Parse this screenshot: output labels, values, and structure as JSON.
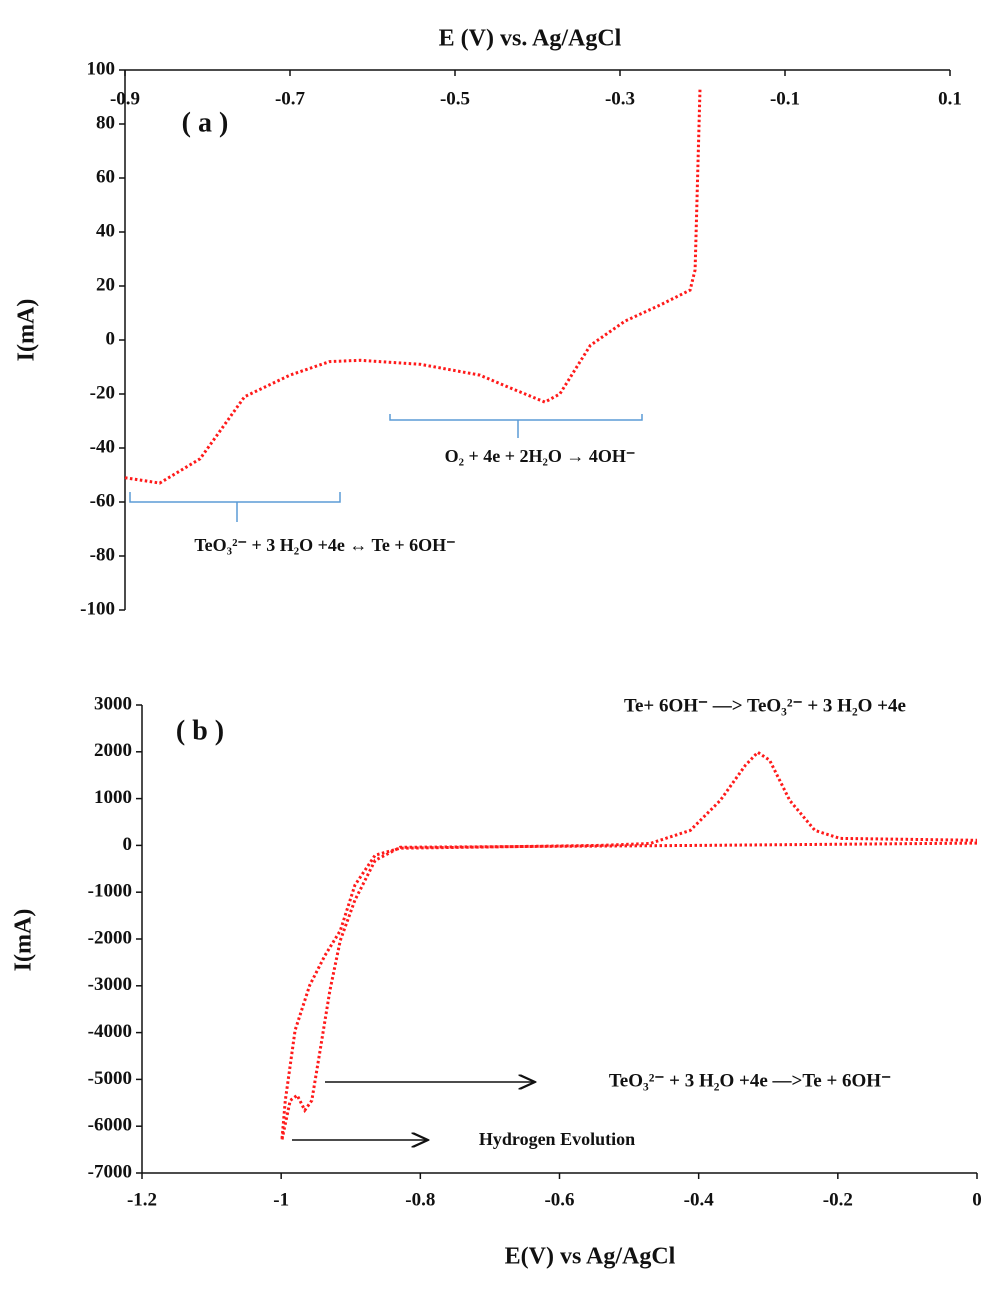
{
  "chart_data": [
    {
      "type": "line",
      "title": "E (V) vs. Ag/AgCl",
      "y_label": "I(mA)",
      "x_axis_position": "top",
      "line_style": "dotted",
      "color": "#ff1a1a",
      "x": [
        -0.9,
        -0.858,
        -0.809,
        -0.755,
        -0.7,
        -0.652,
        -0.615,
        -0.542,
        -0.47,
        -0.439,
        -0.391,
        -0.373,
        -0.336,
        -0.294,
        -0.251,
        -0.215,
        -0.209,
        -0.203
      ],
      "values": [
        -51,
        -53,
        -44,
        -21,
        -13,
        -8,
        -7.5,
        -9,
        -13,
        -17,
        -23,
        -20,
        -2,
        7,
        13,
        18.5,
        26,
        93
      ],
      "xlim": [
        -0.9,
        0.1
      ],
      "xticks": [
        -0.9,
        -0.7,
        -0.5,
        -0.3,
        -0.1,
        0.1
      ],
      "ylim": [
        -100,
        100
      ],
      "yticks": [
        -100,
        -80,
        -60,
        -40,
        -20,
        0,
        20,
        40,
        60,
        80,
        100
      ],
      "annotations": [
        "( a )",
        "O₂ + 4e + 2H₂O → 4OH⁻",
        "TeO₃²⁻ + 3 H₂O +4e ↔ Te + 6OH⁻"
      ]
    },
    {
      "type": "line",
      "x_label": "E(V) vs Ag/AgCl",
      "y_label": "I(mA)",
      "x_axis_position": "bottom",
      "line_style": "dotted",
      "color": "#ff1a1a",
      "x": [
        0,
        -0.398,
        -0.829,
        -0.865,
        -0.894,
        -0.915,
        -0.93,
        -0.944,
        -0.956,
        -0.966,
        -0.977,
        -0.987,
        -0.999,
        -0.994,
        -0.98,
        -0.959,
        -0.937,
        -0.915,
        -0.894,
        -0.865,
        -0.829,
        -0.542,
        -0.47,
        -0.412,
        -0.369,
        -0.333,
        -0.315,
        -0.298,
        -0.269,
        -0.233,
        -0.197,
        0
      ],
      "values": [
        50,
        0,
        -40,
        -320,
        -1170,
        -2030,
        -3100,
        -4380,
        -5450,
        -5660,
        -5340,
        -5450,
        -6300,
        -5450,
        -3950,
        -2990,
        -2350,
        -1820,
        -850,
        -210,
        -60,
        0,
        40,
        320,
        960,
        1710,
        1990,
        1820,
        960,
        320,
        150,
        110
      ],
      "xlim": [
        -1.2,
        0
      ],
      "xticks": [
        -1.2,
        -1,
        -0.8,
        -0.6,
        -0.4,
        -0.2,
        0
      ],
      "ylim": [
        -7000,
        3000
      ],
      "yticks": [
        -7000,
        -6000,
        -5000,
        -4000,
        -3000,
        -2000,
        -1000,
        0,
        1000,
        2000,
        3000
      ],
      "annotations": [
        "( b )",
        "Te+ 6OH⁻ —> TeO₃²⁻ +  3 H₂O +4e",
        "TeO₃²⁻ + 3 H₂O +4e —>Te + 6OH⁻",
        "Hydrogen Evolution"
      ]
    }
  ]
}
